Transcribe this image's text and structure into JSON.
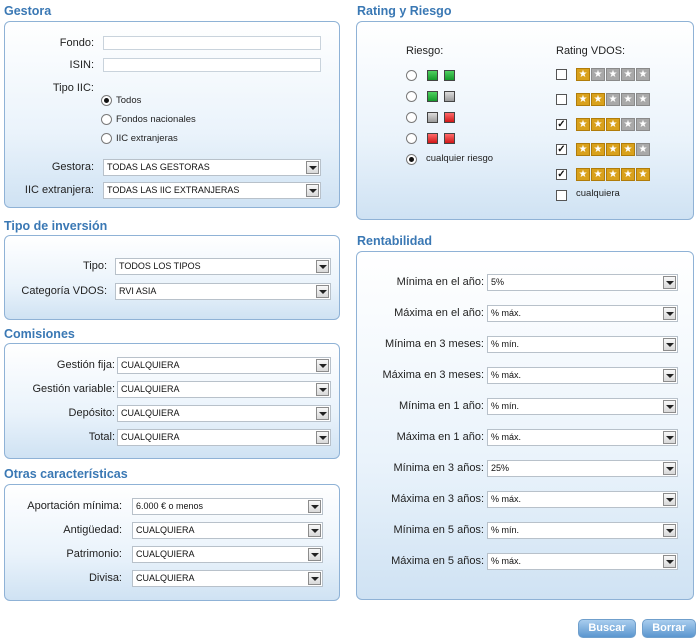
{
  "gestora": {
    "title": "Gestora",
    "fondo_label": "Fondo:",
    "fondo_value": "",
    "isin_label": "ISIN:",
    "isin_value": "",
    "tipo_iic_label": "Tipo IIC:",
    "tipo_options": [
      "Todos",
      "Fondos nacionales",
      "IIC extranjeras"
    ],
    "tipo_selected": 0,
    "gestora_label": "Gestora:",
    "gestora_value": "TODAS LAS GESTORAS",
    "iic_label": "IIC extranjera:",
    "iic_value": "TODAS LAS IIC EXTRANJERAS"
  },
  "tipo_inversion": {
    "title": "Tipo de inversión",
    "tipo_label": "Tipo:",
    "tipo_value": "TODOS LOS TIPOS",
    "categoria_label": "Categoría VDOS:",
    "categoria_value": "RVI ASIA"
  },
  "comisiones": {
    "title": "Comisiones",
    "rows": [
      {
        "label": "Gestión fija:",
        "value": "CUALQUIERA"
      },
      {
        "label": "Gestión variable:",
        "value": "CUALQUIERA"
      },
      {
        "label": "Depósito:",
        "value": "CUALQUIERA"
      },
      {
        "label": "Total:",
        "value": "CUALQUIERA"
      }
    ]
  },
  "otras": {
    "title": "Otras características",
    "rows": [
      {
        "label": "Aportación mínima:",
        "value": "6.000 € o menos"
      },
      {
        "label": "Antigüedad:",
        "value": "CUALQUIERA"
      },
      {
        "label": "Patrimonio:",
        "value": "CUALQUIERA"
      },
      {
        "label": "Divisa:",
        "value": "CUALQUIERA"
      }
    ]
  },
  "rating": {
    "title": "Rating y Riesgo",
    "riesgo_label": "Riesgo:",
    "rating_label": "Rating VDOS:",
    "riesgo_rows": [
      {
        "squares": [
          "green",
          "green"
        ],
        "selected": false
      },
      {
        "squares": [
          "green",
          "gray"
        ],
        "selected": false
      },
      {
        "squares": [
          "gray",
          "red"
        ],
        "selected": false
      },
      {
        "squares": [
          "red",
          "red"
        ],
        "selected": false
      }
    ],
    "cualquier_riesgo_label": "cualquier riesgo",
    "cualquier_riesgo_selected": true,
    "rating_rows": [
      {
        "stars": 1,
        "checked": false
      },
      {
        "stars": 2,
        "checked": false
      },
      {
        "stars": 3,
        "checked": true
      },
      {
        "stars": 4,
        "checked": true
      },
      {
        "stars": 5,
        "checked": true
      }
    ],
    "cualquiera_label": "cualquiera",
    "cualquiera_checked": false,
    "check_mark": "✓",
    "star_glyph": "★"
  },
  "rentabilidad": {
    "title": "Rentabilidad",
    "rows": [
      {
        "label": "Mínima en el año:",
        "value": "5%"
      },
      {
        "label": "Máxima en el año:",
        "value": "% máx."
      },
      {
        "label": "Mínima en 3 meses:",
        "value": "% mín."
      },
      {
        "label": "Máxima en 3 meses:",
        "value": "% máx."
      },
      {
        "label": "Mínima en 1 año:",
        "value": "% mín."
      },
      {
        "label": "Máxima en 1 año:",
        "value": "% máx."
      },
      {
        "label": "Mínima en 3 años:",
        "value": "25%"
      },
      {
        "label": "Máxima en 3 años:",
        "value": "% máx."
      },
      {
        "label": "Mínima en 5 años:",
        "value": "% mín."
      },
      {
        "label": "Máxima en 5 años:",
        "value": "% máx."
      }
    ]
  },
  "buttons": {
    "buscar": "Buscar",
    "borrar": "Borrar"
  },
  "colors": {
    "title": "#3a78b4",
    "panel_border": "#8fb2d6",
    "star_gold": "#d9a11c",
    "button": "#5b96cf"
  }
}
